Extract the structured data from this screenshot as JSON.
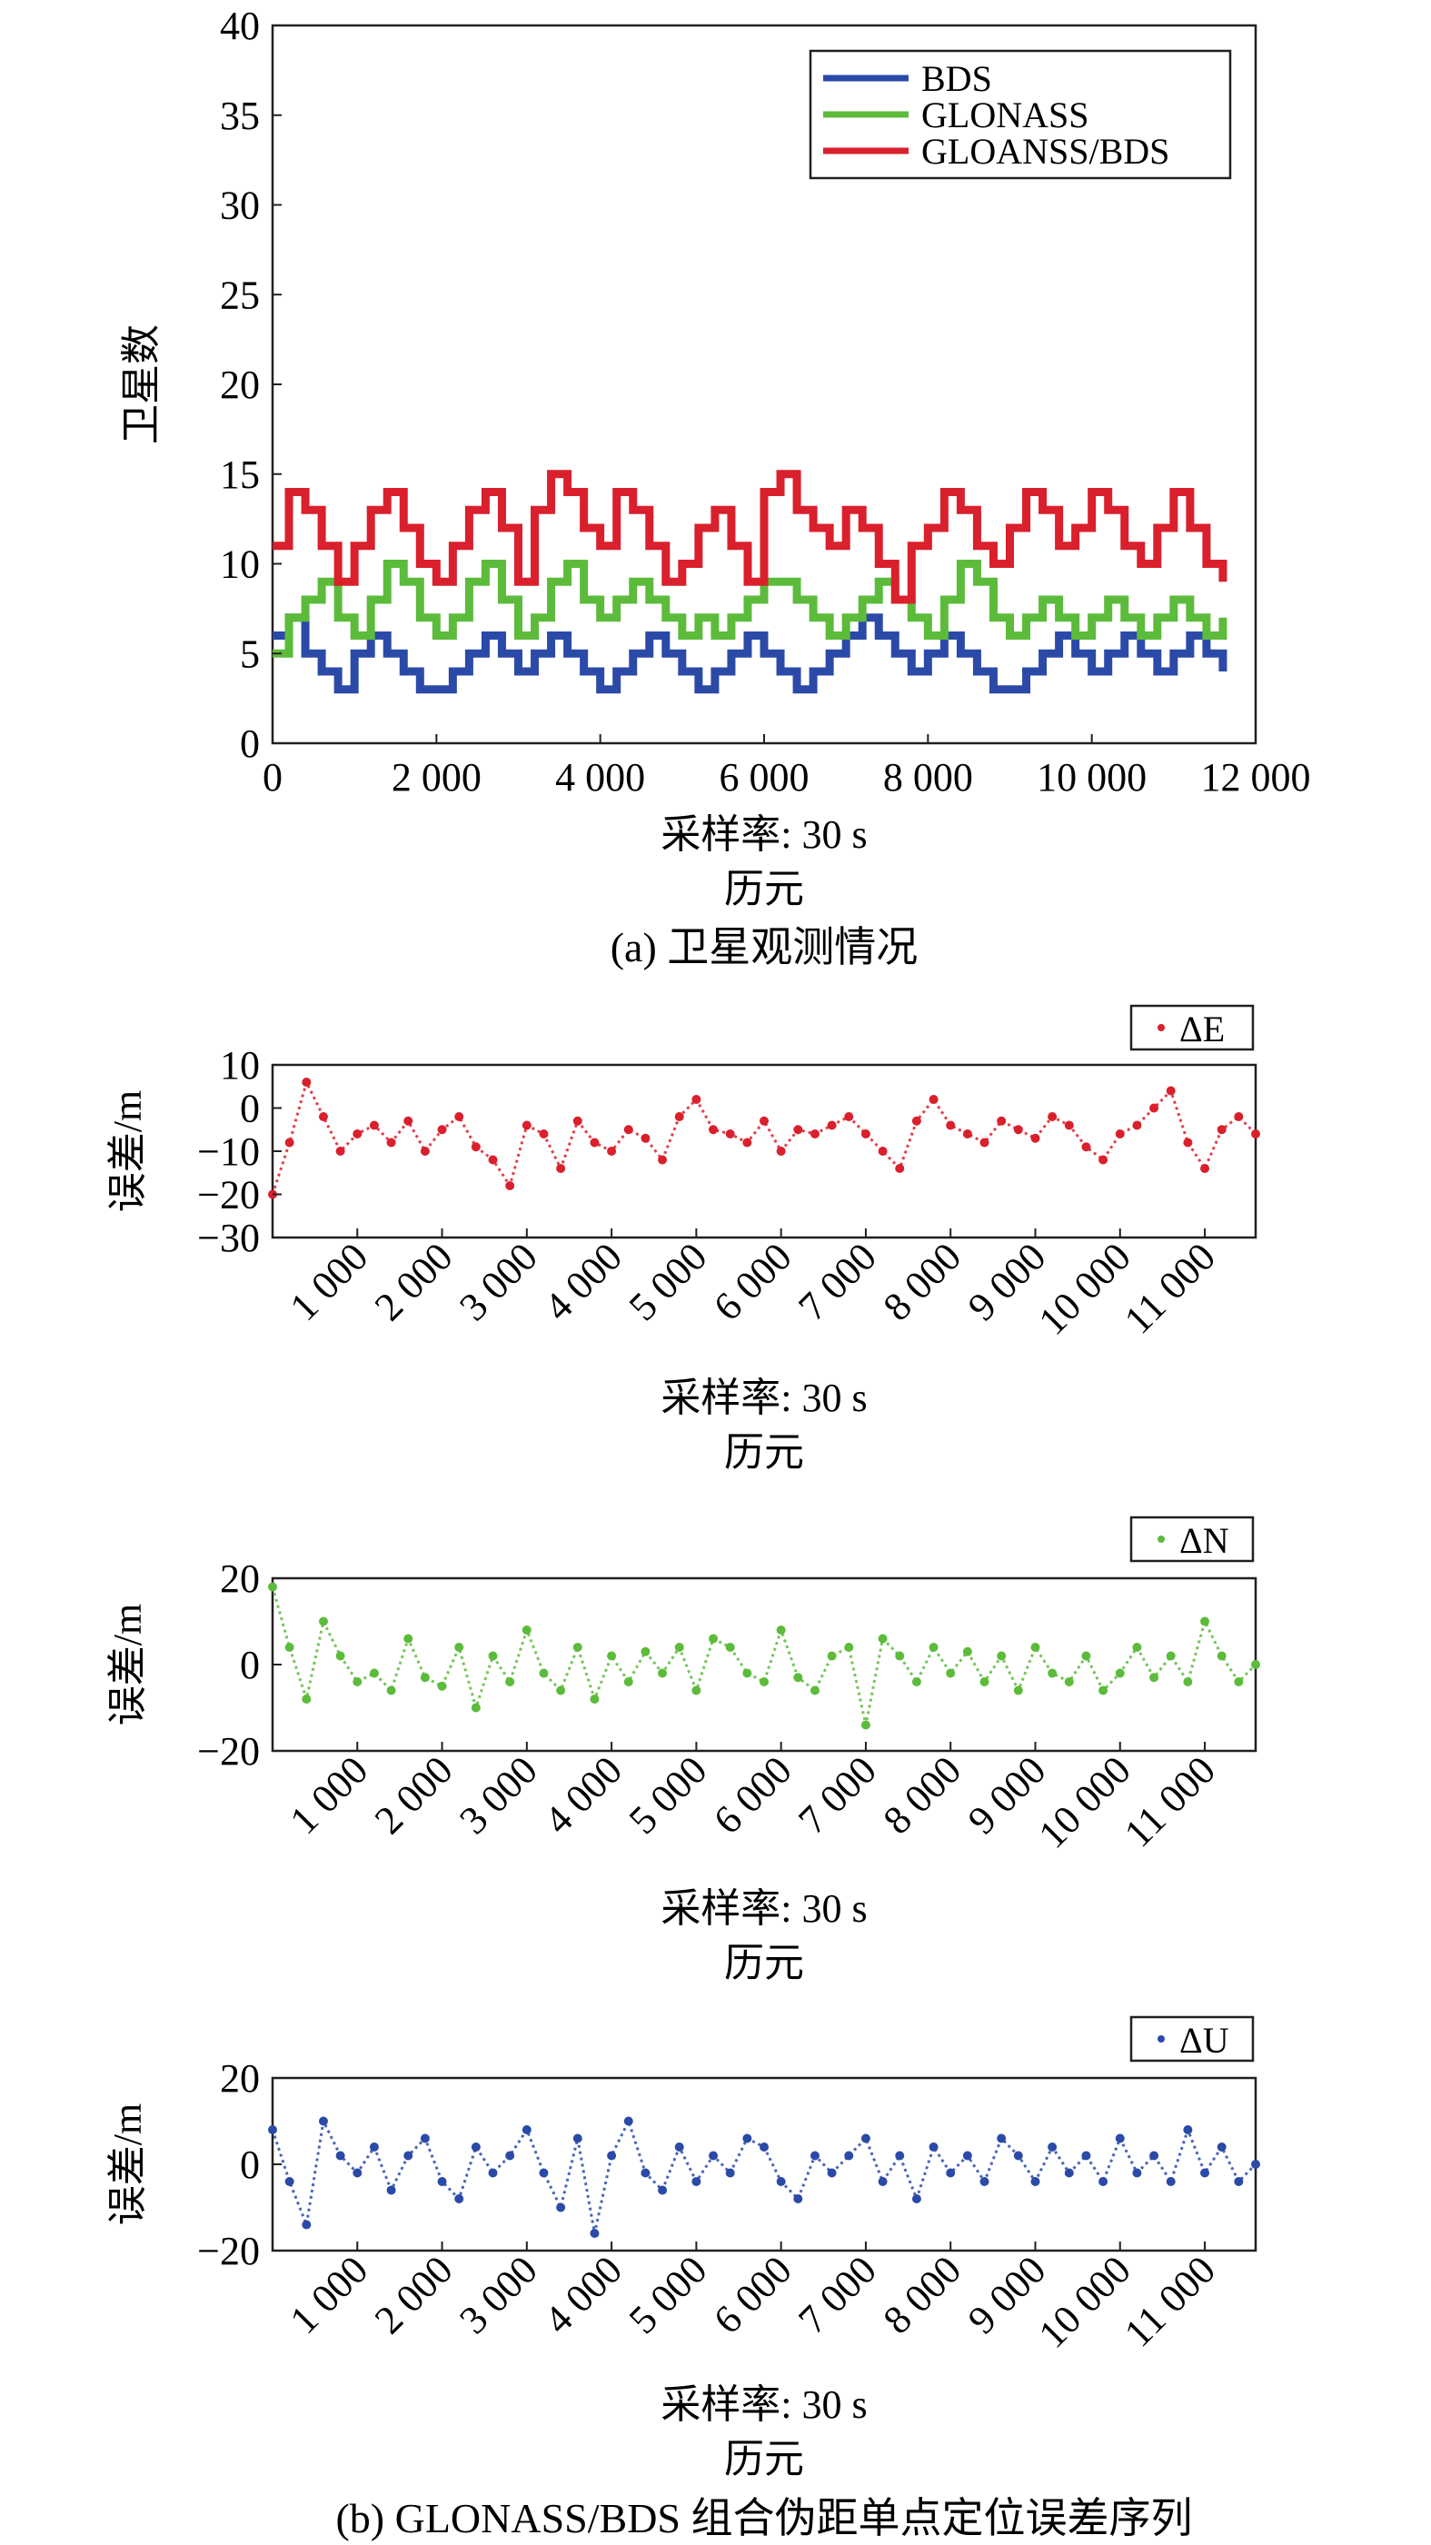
{
  "panel_a": {
    "caption": "(a) 卫星观测情况",
    "xlabel_line1": "采样率: 30 s",
    "xlabel_line2": "历元",
    "ylabel": "卫星数"
  },
  "panel_b": {
    "caption": "(b) GLONASS/BDS 组合伪距单点定位误差序列",
    "xlabel_line1": "采样率: 30 s",
    "xlabel_line2": "历元",
    "ylabel": "误差/m"
  },
  "colors": {
    "bds": "#2b4aa8",
    "glonass": "#5cbb3b",
    "combined": "#d9202c",
    "axis": "#231f20"
  },
  "chart_data": [
    {
      "id": "satellites",
      "type": "line",
      "title": "",
      "xlabel": "采样率: 30 s / 历元",
      "ylabel": "卫星数",
      "xlim": [
        0,
        12000
      ],
      "ylim": [
        0,
        40
      ],
      "xticks": [
        0,
        2000,
        4000,
        6000,
        8000,
        10000,
        12000
      ],
      "xtick_labels": [
        "0",
        "2 000",
        "4 000",
        "6 000",
        "8 000",
        "10 000",
        "12 000"
      ],
      "yticks": [
        0,
        5,
        10,
        15,
        20,
        25,
        30,
        35,
        40
      ],
      "grid": false,
      "legend_position": "top-right",
      "x": [
        0,
        200,
        400,
        600,
        800,
        1000,
        1200,
        1400,
        1600,
        1800,
        2000,
        2200,
        2400,
        2600,
        2800,
        3000,
        3200,
        3400,
        3600,
        3800,
        4000,
        4200,
        4400,
        4600,
        4800,
        5000,
        5200,
        5400,
        5600,
        5800,
        6000,
        6200,
        6400,
        6600,
        6800,
        7000,
        7200,
        7400,
        7600,
        7800,
        8000,
        8200,
        8400,
        8600,
        8800,
        9000,
        9200,
        9400,
        9600,
        9800,
        10000,
        10200,
        10400,
        10600,
        10800,
        11000,
        11200,
        11400,
        11600
      ],
      "series": [
        {
          "name": "BDS",
          "color": "#2b4aa8",
          "values": [
            6,
            7,
            5,
            4,
            3,
            5,
            6,
            5,
            4,
            3,
            3,
            4,
            5,
            6,
            5,
            4,
            5,
            6,
            5,
            4,
            3,
            4,
            5,
            6,
            5,
            4,
            3,
            4,
            5,
            6,
            5,
            4,
            3,
            4,
            5,
            6,
            7,
            6,
            5,
            4,
            5,
            6,
            5,
            4,
            3,
            3,
            4,
            5,
            6,
            5,
            4,
            5,
            6,
            5,
            4,
            5,
            6,
            5,
            4
          ]
        },
        {
          "name": "GLONASS",
          "color": "#5cbb3b",
          "values": [
            5,
            7,
            8,
            9,
            7,
            6,
            8,
            10,
            9,
            7,
            6,
            7,
            9,
            10,
            8,
            6,
            7,
            9,
            10,
            8,
            7,
            8,
            9,
            8,
            7,
            6,
            7,
            6,
            7,
            8,
            9,
            9,
            8,
            7,
            6,
            7,
            8,
            9,
            8,
            7,
            6,
            8,
            10,
            9,
            7,
            6,
            7,
            8,
            7,
            6,
            7,
            8,
            7,
            6,
            7,
            8,
            7,
            6,
            7
          ]
        },
        {
          "name": "GLOANSS/BDS",
          "color": "#d9202c",
          "values": [
            11,
            14,
            13,
            11,
            9,
            11,
            13,
            14,
            12,
            10,
            9,
            11,
            13,
            14,
            12,
            9,
            13,
            15,
            14,
            12,
            11,
            14,
            13,
            11,
            9,
            10,
            12,
            13,
            11,
            9,
            14,
            15,
            13,
            12,
            11,
            13,
            12,
            10,
            8,
            11,
            12,
            14,
            13,
            11,
            10,
            12,
            14,
            13,
            11,
            12,
            14,
            13,
            11,
            10,
            12,
            14,
            12,
            10,
            9
          ]
        }
      ]
    },
    {
      "id": "dE",
      "type": "scatter",
      "title": "",
      "xlabel": "采样率: 30 s / 历元",
      "ylabel": "误差/m",
      "xlim": [
        0,
        11600
      ],
      "ylim": [
        -30,
        10
      ],
      "yticks": [
        10,
        0,
        -10,
        -20,
        -30
      ],
      "xticks": [
        1000,
        2000,
        3000,
        4000,
        5000,
        6000,
        7000,
        8000,
        9000,
        10000,
        11000
      ],
      "xtick_labels": [
        "1 000",
        "2 000",
        "3 000",
        "4 000",
        "5 000",
        "6 000",
        "7 000",
        "8 000",
        "9 000",
        "10 000",
        "11 000"
      ],
      "grid": false,
      "legend_position": "top-right",
      "series": [
        {
          "name": "ΔE",
          "color": "#d9202c",
          "x": [
            0,
            200,
            400,
            600,
            800,
            1000,
            1200,
            1400,
            1600,
            1800,
            2000,
            2200,
            2400,
            2600,
            2800,
            3000,
            3200,
            3400,
            3600,
            3800,
            4000,
            4200,
            4400,
            4600,
            4800,
            5000,
            5200,
            5400,
            5600,
            5800,
            6000,
            6200,
            6400,
            6600,
            6800,
            7000,
            7200,
            7400,
            7600,
            7800,
            8000,
            8200,
            8400,
            8600,
            8800,
            9000,
            9200,
            9400,
            9600,
            9800,
            10000,
            10200,
            10400,
            10600,
            10800,
            11000,
            11200,
            11400,
            11600
          ],
          "values": [
            -20,
            -8,
            6,
            -2,
            -10,
            -6,
            -4,
            -8,
            -3,
            -10,
            -5,
            -2,
            -9,
            -12,
            -18,
            -4,
            -6,
            -14,
            -3,
            -8,
            -10,
            -5,
            -7,
            -12,
            -2,
            2,
            -5,
            -6,
            -8,
            -3,
            -10,
            -5,
            -6,
            -4,
            -2,
            -6,
            -10,
            -14,
            -3,
            2,
            -4,
            -6,
            -8,
            -3,
            -5,
            -7,
            -2,
            -4,
            -9,
            -12,
            -6,
            -4,
            0,
            4,
            -8,
            -14,
            -5,
            -2,
            -6
          ]
        }
      ]
    },
    {
      "id": "dN",
      "type": "scatter",
      "title": "",
      "xlabel": "采样率: 30 s / 历元",
      "ylabel": "误差/m",
      "xlim": [
        0,
        11600
      ],
      "ylim": [
        -20,
        20
      ],
      "yticks": [
        20,
        0,
        -20
      ],
      "xticks": [
        1000,
        2000,
        3000,
        4000,
        5000,
        6000,
        7000,
        8000,
        9000,
        10000,
        11000
      ],
      "xtick_labels": [
        "1 000",
        "2 000",
        "3 000",
        "4 000",
        "5 000",
        "6 000",
        "7 000",
        "8 000",
        "9 000",
        "10 000",
        "11 000"
      ],
      "grid": false,
      "legend_position": "top-right",
      "series": [
        {
          "name": "ΔN",
          "color": "#5cbb3b",
          "x": [
            0,
            200,
            400,
            600,
            800,
            1000,
            1200,
            1400,
            1600,
            1800,
            2000,
            2200,
            2400,
            2600,
            2800,
            3000,
            3200,
            3400,
            3600,
            3800,
            4000,
            4200,
            4400,
            4600,
            4800,
            5000,
            5200,
            5400,
            5600,
            5800,
            6000,
            6200,
            6400,
            6600,
            6800,
            7000,
            7200,
            7400,
            7600,
            7800,
            8000,
            8200,
            8400,
            8600,
            8800,
            9000,
            9200,
            9400,
            9600,
            9800,
            10000,
            10200,
            10400,
            10600,
            10800,
            11000,
            11200,
            11400,
            11600
          ],
          "values": [
            18,
            4,
            -8,
            10,
            2,
            -4,
            -2,
            -6,
            6,
            -3,
            -5,
            4,
            -10,
            2,
            -4,
            8,
            -2,
            -6,
            4,
            -8,
            2,
            -4,
            3,
            -2,
            4,
            -6,
            6,
            4,
            -2,
            -4,
            8,
            -3,
            -6,
            2,
            4,
            -14,
            6,
            2,
            -4,
            4,
            -2,
            3,
            -4,
            2,
            -6,
            4,
            -2,
            -4,
            2,
            -6,
            -2,
            4,
            -3,
            2,
            -4,
            10,
            2,
            -4,
            0
          ]
        }
      ]
    },
    {
      "id": "dU",
      "type": "scatter",
      "title": "",
      "xlabel": "采样率: 30 s / 历元",
      "ylabel": "误差/m",
      "xlim": [
        0,
        11600
      ],
      "ylim": [
        -20,
        20
      ],
      "yticks": [
        20,
        0,
        -20
      ],
      "xticks": [
        1000,
        2000,
        3000,
        4000,
        5000,
        6000,
        7000,
        8000,
        9000,
        10000,
        11000
      ],
      "xtick_labels": [
        "1 000",
        "2 000",
        "3 000",
        "4 000",
        "5 000",
        "6 000",
        "7 000",
        "8 000",
        "9 000",
        "10 000",
        "11 000"
      ],
      "grid": false,
      "legend_position": "top-right",
      "series": [
        {
          "name": "ΔU",
          "color": "#2b4aa8",
          "x": [
            0,
            200,
            400,
            600,
            800,
            1000,
            1200,
            1400,
            1600,
            1800,
            2000,
            2200,
            2400,
            2600,
            2800,
            3000,
            3200,
            3400,
            3600,
            3800,
            4000,
            4200,
            4400,
            4600,
            4800,
            5000,
            5200,
            5400,
            5600,
            5800,
            6000,
            6200,
            6400,
            6600,
            6800,
            7000,
            7200,
            7400,
            7600,
            7800,
            8000,
            8200,
            8400,
            8600,
            8800,
            9000,
            9200,
            9400,
            9600,
            9800,
            10000,
            10200,
            10400,
            10600,
            10800,
            11000,
            11200,
            11400,
            11600
          ],
          "values": [
            8,
            -4,
            -14,
            10,
            2,
            -2,
            4,
            -6,
            2,
            6,
            -4,
            -8,
            4,
            -2,
            2,
            8,
            -2,
            -10,
            6,
            -16,
            2,
            10,
            -2,
            -6,
            4,
            -4,
            2,
            -2,
            6,
            4,
            -4,
            -8,
            2,
            -2,
            2,
            6,
            -4,
            2,
            -8,
            4,
            -2,
            2,
            -4,
            6,
            2,
            -4,
            4,
            -2,
            2,
            -4,
            6,
            -2,
            2,
            -4,
            8,
            -2,
            4,
            -4,
            0
          ]
        }
      ]
    }
  ]
}
